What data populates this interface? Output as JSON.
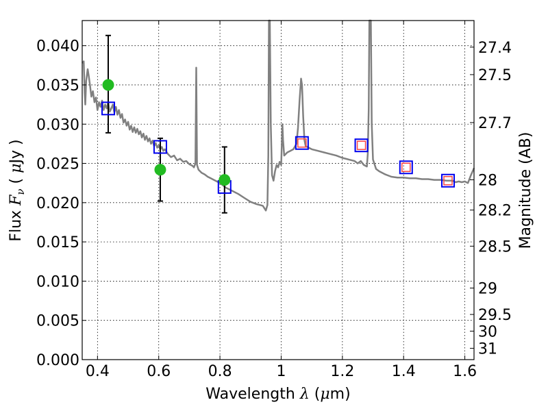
{
  "chart_data": {
    "type": "line",
    "title": "",
    "xlabel": "Wavelength",
    "xlabel_symbol": "λ",
    "xlabel_unit_open": "(",
    "xlabel_unit_mu": "μ",
    "xlabel_unit_rest": "m)",
    "ylabel_prefix": "Flux",
    "ylabel_symbol": "F",
    "ylabel_subscript": "ν",
    "ylabel_unit_open": "(",
    "ylabel_unit_mu": "μ",
    "ylabel_unit_rest": "Jy )",
    "y2label": "Magnitude (AB)",
    "xlim": [
      0.35,
      1.63
    ],
    "ylim": [
      0.0,
      0.0432
    ],
    "grid": true,
    "x_ticks": [
      {
        "value": 0.4,
        "label": "0.4"
      },
      {
        "value": 0.6,
        "label": "0.6"
      },
      {
        "value": 0.8,
        "label": "0.8"
      },
      {
        "value": 1.0,
        "label": "1"
      },
      {
        "value": 1.2,
        "label": "1.2"
      },
      {
        "value": 1.4,
        "label": "1.4"
      },
      {
        "value": 1.6,
        "label": "1.6"
      }
    ],
    "y_ticks": [
      {
        "value": 0.0,
        "label": "0.000"
      },
      {
        "value": 0.005,
        "label": "0.005"
      },
      {
        "value": 0.01,
        "label": "0.010"
      },
      {
        "value": 0.015,
        "label": "0.015"
      },
      {
        "value": 0.02,
        "label": "0.020"
      },
      {
        "value": 0.025,
        "label": "0.025"
      },
      {
        "value": 0.03,
        "label": "0.030"
      },
      {
        "value": 0.035,
        "label": "0.035"
      },
      {
        "value": 0.04,
        "label": "0.040"
      }
    ],
    "y2_ticks": [
      {
        "value": 27.4,
        "label": "27.4"
      },
      {
        "value": 27.5,
        "label": "27.5"
      },
      {
        "value": 27.7,
        "label": "27.7"
      },
      {
        "value": 28.0,
        "label": "28"
      },
      {
        "value": 28.2,
        "label": "28.2"
      },
      {
        "value": 28.5,
        "label": "28.5"
      },
      {
        "value": 29.0,
        "label": "29"
      },
      {
        "value": 29.5,
        "label": "29.5"
      },
      {
        "value": 30.0,
        "label": "30"
      },
      {
        "value": 31.0,
        "label": "31"
      }
    ],
    "series": [
      {
        "name": "model-spectrum",
        "kind": "line",
        "color": "#808080",
        "points": [
          [
            0.35,
            0.0378
          ],
          [
            0.355,
            0.038
          ],
          [
            0.358,
            0.034
          ],
          [
            0.36,
            0.0325
          ],
          [
            0.363,
            0.0355
          ],
          [
            0.368,
            0.037
          ],
          [
            0.372,
            0.036
          ],
          [
            0.376,
            0.0348
          ],
          [
            0.38,
            0.0335
          ],
          [
            0.385,
            0.0342
          ],
          [
            0.39,
            0.0328
          ],
          [
            0.395,
            0.0334
          ],
          [
            0.4,
            0.0318
          ],
          [
            0.405,
            0.0328
          ],
          [
            0.41,
            0.0322
          ],
          [
            0.415,
            0.033
          ],
          [
            0.42,
            0.0318
          ],
          [
            0.425,
            0.0325
          ],
          [
            0.43,
            0.032
          ],
          [
            0.435,
            0.0328
          ],
          [
            0.44,
            0.0316
          ],
          [
            0.445,
            0.032
          ],
          [
            0.45,
            0.0325
          ],
          [
            0.455,
            0.0315
          ],
          [
            0.46,
            0.0322
          ],
          [
            0.465,
            0.0312
          ],
          [
            0.47,
            0.0318
          ],
          [
            0.475,
            0.0308
          ],
          [
            0.48,
            0.0313
          ],
          [
            0.485,
            0.0302
          ],
          [
            0.49,
            0.0306
          ],
          [
            0.495,
            0.0298
          ],
          [
            0.5,
            0.0303
          ],
          [
            0.505,
            0.0293
          ],
          [
            0.51,
            0.0298
          ],
          [
            0.515,
            0.029
          ],
          [
            0.52,
            0.0296
          ],
          [
            0.525,
            0.0289
          ],
          [
            0.53,
            0.0294
          ],
          [
            0.535,
            0.0287
          ],
          [
            0.54,
            0.0291
          ],
          [
            0.545,
            0.0283
          ],
          [
            0.55,
            0.0288
          ],
          [
            0.555,
            0.028
          ],
          [
            0.56,
            0.0285
          ],
          [
            0.565,
            0.0278
          ],
          [
            0.57,
            0.0282
          ],
          [
            0.575,
            0.0275
          ],
          [
            0.58,
            0.0279
          ],
          [
            0.585,
            0.0272
          ],
          [
            0.59,
            0.0276
          ],
          [
            0.595,
            0.027
          ],
          [
            0.6,
            0.0273
          ],
          [
            0.605,
            0.0268
          ],
          [
            0.61,
            0.0271
          ],
          [
            0.615,
            0.0266
          ],
          [
            0.62,
            0.0268
          ],
          [
            0.63,
            0.0262
          ],
          [
            0.64,
            0.0258
          ],
          [
            0.65,
            0.026
          ],
          [
            0.66,
            0.0254
          ],
          [
            0.67,
            0.0256
          ],
          [
            0.68,
            0.0252
          ],
          [
            0.69,
            0.0253
          ],
          [
            0.7,
            0.0249
          ],
          [
            0.71,
            0.0247
          ],
          [
            0.715,
            0.0245
          ],
          [
            0.72,
            0.025
          ],
          [
            0.7225,
            0.0372
          ],
          [
            0.725,
            0.0248
          ],
          [
            0.73,
            0.0242
          ],
          [
            0.74,
            0.0238
          ],
          [
            0.75,
            0.0236
          ],
          [
            0.76,
            0.0233
          ],
          [
            0.77,
            0.0231
          ],
          [
            0.78,
            0.0229
          ],
          [
            0.79,
            0.0227
          ],
          [
            0.8,
            0.0225
          ],
          [
            0.81,
            0.0222
          ],
          [
            0.82,
            0.0219
          ],
          [
            0.84,
            0.0215
          ],
          [
            0.86,
            0.0211
          ],
          [
            0.88,
            0.0206
          ],
          [
            0.9,
            0.0201
          ],
          [
            0.92,
            0.0198
          ],
          [
            0.94,
            0.0196
          ],
          [
            0.95,
            0.019
          ],
          [
            0.955,
            0.0197
          ],
          [
            0.958,
            0.026
          ],
          [
            0.96,
            0.0432
          ],
          [
            0.963,
            0.0432
          ],
          [
            0.966,
            0.03
          ],
          [
            0.97,
            0.0235
          ],
          [
            0.975,
            0.0228
          ],
          [
            0.98,
            0.024
          ],
          [
            0.985,
            0.0248
          ],
          [
            0.99,
            0.0245
          ],
          [
            0.995,
            0.0252
          ],
          [
            1.0,
            0.0248
          ],
          [
            1.002,
            0.0275
          ],
          [
            1.004,
            0.03
          ],
          [
            1.006,
            0.028
          ],
          [
            1.01,
            0.026
          ],
          [
            1.02,
            0.0264
          ],
          [
            1.03,
            0.0266
          ],
          [
            1.04,
            0.0268
          ],
          [
            1.05,
            0.0275
          ],
          [
            1.055,
            0.0295
          ],
          [
            1.06,
            0.033
          ],
          [
            1.065,
            0.0358
          ],
          [
            1.068,
            0.035
          ],
          [
            1.072,
            0.031
          ],
          [
            1.076,
            0.028
          ],
          [
            1.08,
            0.0272
          ],
          [
            1.09,
            0.027
          ],
          [
            1.1,
            0.0268
          ],
          [
            1.12,
            0.0266
          ],
          [
            1.14,
            0.0264
          ],
          [
            1.16,
            0.0262
          ],
          [
            1.18,
            0.026
          ],
          [
            1.2,
            0.0257
          ],
          [
            1.22,
            0.0255
          ],
          [
            1.24,
            0.0253
          ],
          [
            1.25,
            0.025
          ],
          [
            1.26,
            0.0253
          ],
          [
            1.27,
            0.0248
          ],
          [
            1.28,
            0.0246
          ],
          [
            1.283,
            0.0262
          ],
          [
            1.286,
            0.032
          ],
          [
            1.288,
            0.0432
          ],
          [
            1.293,
            0.0432
          ],
          [
            1.296,
            0.03
          ],
          [
            1.3,
            0.0255
          ],
          [
            1.31,
            0.0243
          ],
          [
            1.32,
            0.024
          ],
          [
            1.34,
            0.0236
          ],
          [
            1.36,
            0.0233
          ],
          [
            1.38,
            0.0232
          ],
          [
            1.4,
            0.0232
          ],
          [
            1.42,
            0.0231
          ],
          [
            1.44,
            0.0231
          ],
          [
            1.46,
            0.023
          ],
          [
            1.48,
            0.023
          ],
          [
            1.5,
            0.0229
          ],
          [
            1.52,
            0.0229
          ],
          [
            1.54,
            0.0228
          ],
          [
            1.56,
            0.0228
          ],
          [
            1.57,
            0.0226
          ],
          [
            1.58,
            0.0227
          ],
          [
            1.59,
            0.0226
          ],
          [
            1.6,
            0.0227
          ],
          [
            1.61,
            0.0225
          ],
          [
            1.62,
            0.0235
          ],
          [
            1.63,
            0.0244
          ]
        ]
      },
      {
        "name": "observed-flux",
        "kind": "scatter-errorbar",
        "color": "#22bb22",
        "points": [
          {
            "x": 0.435,
            "y": 0.035,
            "ylow": 0.0289,
            "yhigh": 0.0413
          },
          {
            "x": 0.605,
            "y": 0.0242,
            "ylow": 0.0202,
            "yhigh": 0.0282
          },
          {
            "x": 0.815,
            "y": 0.0229,
            "ylow": 0.0187,
            "yhigh": 0.0271
          }
        ]
      },
      {
        "name": "model-photometry",
        "kind": "square-markers",
        "color": "#0000ee",
        "points": [
          {
            "x": 0.435,
            "y": 0.032
          },
          {
            "x": 0.605,
            "y": 0.0271
          },
          {
            "x": 0.815,
            "y": 0.022
          },
          {
            "x": 1.068,
            "y": 0.0276
          },
          {
            "x": 1.262,
            "y": 0.0273
          },
          {
            "x": 1.408,
            "y": 0.0245
          },
          {
            "x": 1.545,
            "y": 0.0228
          }
        ]
      },
      {
        "name": "upper-limits",
        "kind": "small-square-markers",
        "color": "#ff4444",
        "points": [
          {
            "x": 1.068,
            "y": 0.0276
          },
          {
            "x": 1.262,
            "y": 0.0273
          },
          {
            "x": 1.408,
            "y": 0.0245
          },
          {
            "x": 1.545,
            "y": 0.0228
          }
        ]
      }
    ]
  }
}
